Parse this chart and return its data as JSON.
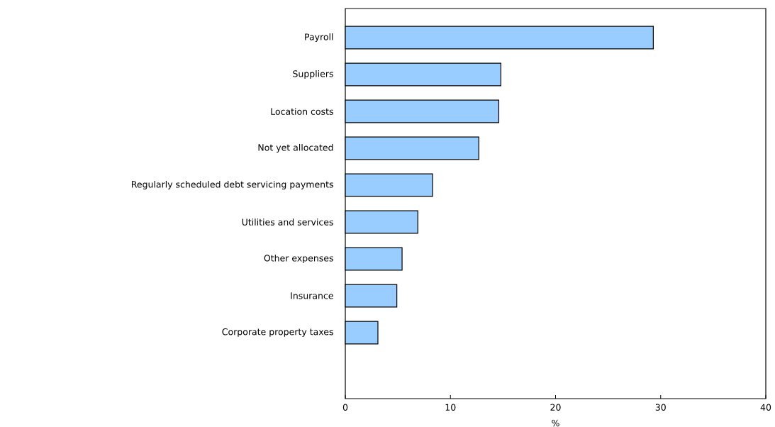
{
  "chart_data": {
    "type": "bar",
    "orientation": "horizontal",
    "xlabel": "%",
    "categories": [
      "Payroll",
      "Suppliers",
      "Location costs",
      "Not yet allocated",
      "Regularly scheduled debt servicing payments",
      "Utilities and services",
      "Other expenses",
      "Insurance",
      "Corporate property taxes"
    ],
    "values": [
      29.3,
      14.8,
      14.6,
      12.7,
      8.3,
      6.9,
      5.4,
      4.9,
      3.1
    ],
    "color": "#99ccff",
    "xlim": [
      0,
      40
    ],
    "xticks": [
      0,
      10,
      20,
      30,
      40
    ],
    "grid": false,
    "legend": false
  }
}
